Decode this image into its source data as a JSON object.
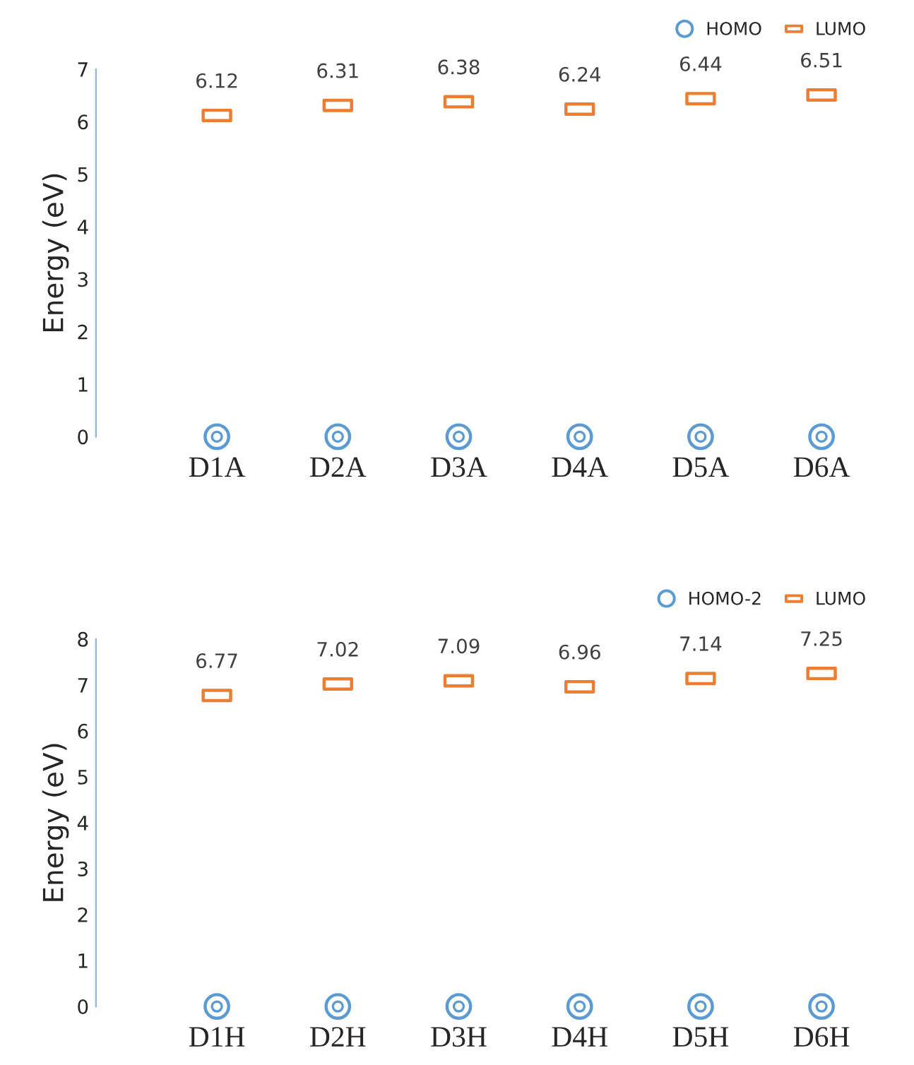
{
  "chart_data": [
    {
      "type": "scatter",
      "ylabel": "Energy (eV)",
      "categories": [
        "D1A",
        "D2A",
        "D3A",
        "D4A",
        "D5A",
        "D6A"
      ],
      "ylim": [
        0,
        7
      ],
      "yticks": [
        0,
        1,
        2,
        3,
        4,
        5,
        6,
        7
      ],
      "grid": false,
      "legend": "top right",
      "series": [
        {
          "name": "HOMO",
          "color": "#5b9bd5",
          "marker": "circle",
          "values": [
            0,
            0,
            0,
            0,
            0,
            0
          ]
        },
        {
          "name": "LUMO",
          "color": "#ed7d31",
          "marker": "square",
          "values": [
            6.12,
            6.31,
            6.38,
            6.24,
            6.44,
            6.51
          ],
          "value_labels": [
            "6.12",
            "6.31",
            "6.38",
            "6.24",
            "6.44",
            "6.51"
          ]
        }
      ]
    },
    {
      "type": "scatter",
      "ylabel": "Energy (eV)",
      "categories": [
        "D1H",
        "D2H",
        "D3H",
        "D4H",
        "D5H",
        "D6H"
      ],
      "ylim": [
        0,
        8
      ],
      "yticks": [
        0,
        1,
        2,
        3,
        4,
        5,
        6,
        7,
        8
      ],
      "grid": false,
      "legend": "top right",
      "series": [
        {
          "name": "HOMO-2",
          "color": "#5b9bd5",
          "marker": "circle",
          "values": [
            0,
            0,
            0,
            0,
            0,
            0
          ]
        },
        {
          "name": "LUMO",
          "color": "#ed7d31",
          "marker": "square",
          "values": [
            6.77,
            7.02,
            7.09,
            6.96,
            7.14,
            7.25
          ],
          "value_labels": [
            "6.77",
            "7.02",
            "7.09",
            "6.96",
            "7.14",
            "7.25"
          ]
        }
      ]
    }
  ]
}
